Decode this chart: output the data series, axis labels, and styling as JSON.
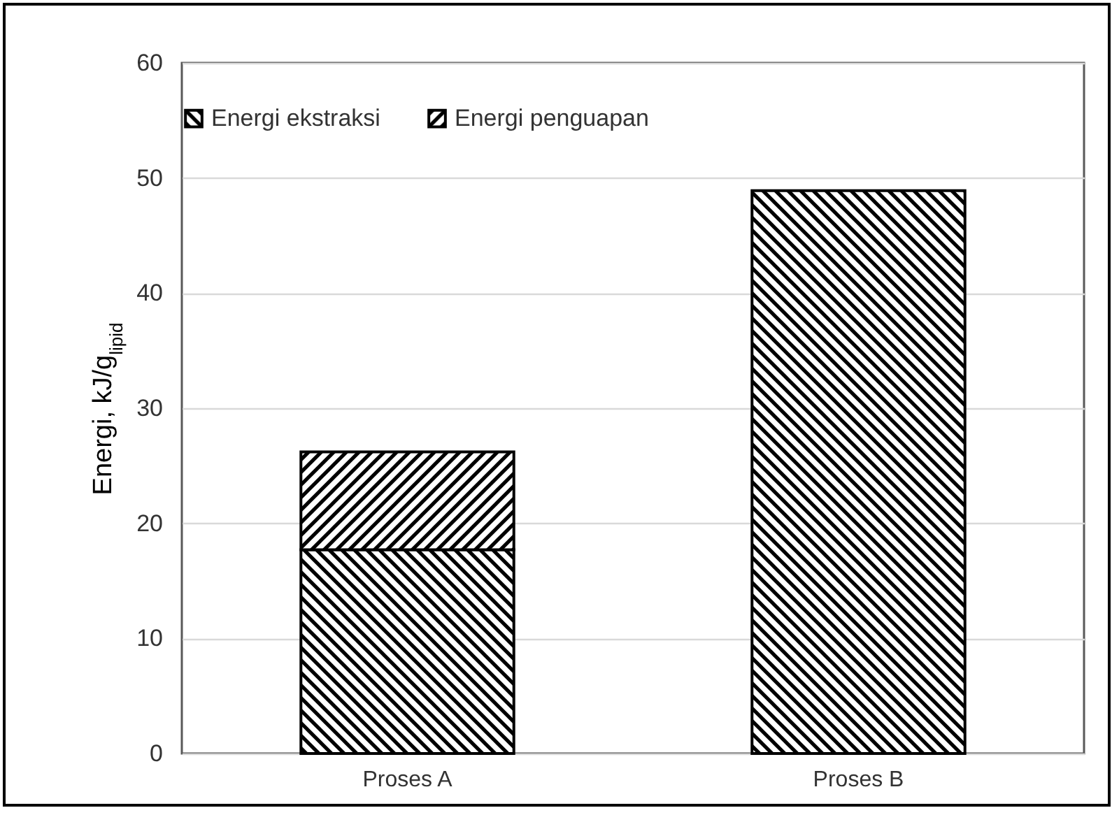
{
  "chart_data": {
    "type": "bar",
    "stacked": true,
    "ylabel": "Energi, kJ/g$_{lipid}$",
    "categories": [
      "Proses A",
      "Proses B"
    ],
    "series": [
      {
        "name": "Energi ekstraksi",
        "color": "#000000",
        "values": [
          17.7,
          48.9
        ]
      },
      {
        "name": "Energi penguapan",
        "color": "#000000",
        "values": [
          8.5,
          null
        ]
      }
    ],
    "ylim": [
      0,
      60
    ],
    "yticks": [
      0,
      10,
      20,
      30,
      40,
      50,
      60
    ],
    "grid": "y",
    "legend": "top"
  }
}
